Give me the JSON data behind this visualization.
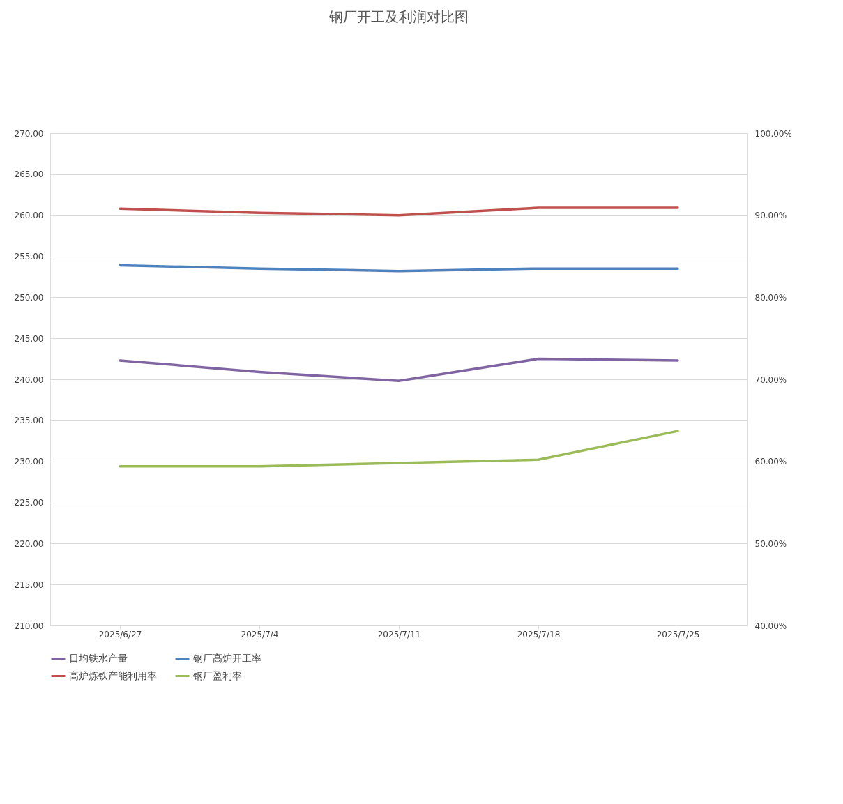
{
  "chart_data": {
    "type": "line",
    "title": "钢厂开工及利润对比图",
    "categories": [
      "2025/6/27",
      "2025/7/4",
      "2025/7/11",
      "2025/7/18",
      "2025/7/25"
    ],
    "series": [
      {
        "name": "日均铁水产量",
        "color": "#8064a2",
        "values": [
          242.3,
          240.9,
          239.8,
          242.5,
          242.3
        ]
      },
      {
        "name": "钢厂高炉开工率",
        "color": "#4f81bd",
        "axis": "y2",
        "values": [
          83.9,
          83.5,
          83.2,
          83.5,
          83.5
        ]
      },
      {
        "name": "高炉炼铁产能利用率",
        "color": "#c0504d",
        "axis": "y2",
        "values": [
          90.8,
          90.3,
          90.0,
          90.9,
          90.9
        ]
      },
      {
        "name": "钢厂盈利率",
        "color": "#9bbb59",
        "axis": "y2",
        "values": [
          59.4,
          59.4,
          59.8,
          60.2,
          63.7
        ]
      }
    ],
    "ylim": [
      210,
      270
    ],
    "yticks": [
      {
        "value": 210,
        "label": "210.00"
      },
      {
        "value": 215,
        "label": "215.00"
      },
      {
        "value": 220,
        "label": "220.00"
      },
      {
        "value": 225,
        "label": "225.00"
      },
      {
        "value": 230,
        "label": "230.00"
      },
      {
        "value": 235,
        "label": "235.00"
      },
      {
        "value": 240,
        "label": "240.00"
      },
      {
        "value": 245,
        "label": "245.00"
      },
      {
        "value": 250,
        "label": "250.00"
      },
      {
        "value": 255,
        "label": "255.00"
      },
      {
        "value": 260,
        "label": "260.00"
      },
      {
        "value": 265,
        "label": "265.00"
      },
      {
        "value": 270,
        "label": "270.00"
      }
    ],
    "y2lim": [
      40,
      100
    ],
    "y2ticks": [
      {
        "value": 40,
        "label": "40.00%"
      },
      {
        "value": 50,
        "label": "50.00%"
      },
      {
        "value": 60,
        "label": "60.00%"
      },
      {
        "value": 70,
        "label": "70.00%"
      },
      {
        "value": 80,
        "label": "80.00%"
      },
      {
        "value": 90,
        "label": "90.00%"
      },
      {
        "value": 100,
        "label": "100.00%"
      }
    ],
    "grid": "y",
    "legend": "bottom",
    "marker": "none",
    "line_style": "solid"
  }
}
